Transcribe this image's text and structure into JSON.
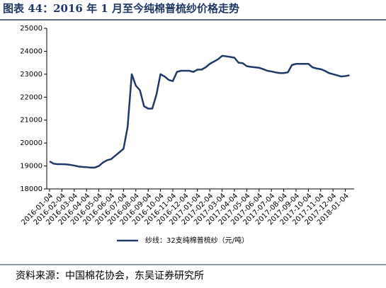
{
  "chart_data": {
    "type": "line",
    "title": "图表 44：2016 年 1 月至今纯棉普梳纱价格走势",
    "categories": [
      "2016-01-04",
      null,
      null,
      "2016-02-04",
      null,
      null,
      "2016-03-04",
      null,
      null,
      "2016-04-04",
      null,
      null,
      "2016-05-04",
      null,
      null,
      "2016-06-04",
      null,
      null,
      "2016-07-04",
      null,
      null,
      "2016-08-04",
      null,
      null,
      "2016-09-04",
      null,
      null,
      "2016-10-04",
      null,
      null,
      "2016-11-04",
      null,
      null,
      "2016-12-04",
      null,
      null,
      "2017-01-04",
      null,
      null,
      "2017-02-04",
      null,
      null,
      "2017-03-04",
      null,
      null,
      "2017-04-04",
      null,
      null,
      "2017-05-04",
      null,
      null,
      "2017-06-04",
      null,
      null,
      "2017-07-04",
      null,
      null,
      "2017-08-04",
      null,
      null,
      "2017-09-04",
      null,
      null,
      "2017-10-04",
      null,
      null,
      "2017-11-04",
      null,
      null,
      "2017-12-04",
      null,
      null,
      "2018-01-04",
      null
    ],
    "series": [
      {
        "name": "纱线：32支纯棉普梳纱（元/吨）",
        "color": "#1f3a68",
        "values": [
          19200,
          19100,
          19080,
          19080,
          19070,
          19050,
          19020,
          18980,
          18960,
          18950,
          18930,
          18930,
          19000,
          19150,
          19250,
          19300,
          19450,
          19600,
          19750,
          20700,
          23000,
          22500,
          22300,
          21600,
          21500,
          21500,
          22100,
          23000,
          22900,
          22750,
          22700,
          23100,
          23150,
          23150,
          23150,
          23100,
          23200,
          23200,
          23300,
          23450,
          23550,
          23650,
          23800,
          23780,
          23750,
          23720,
          23500,
          23480,
          23350,
          23320,
          23300,
          23280,
          23220,
          23150,
          23120,
          23080,
          23050,
          23050,
          23080,
          23400,
          23450,
          23450,
          23450,
          23450,
          23300,
          23250,
          23220,
          23150,
          23050,
          23000,
          22950,
          22900,
          22920,
          22950
        ]
      }
    ],
    "ylim": [
      18000,
      25000
    ],
    "yticks": [
      18000,
      19000,
      20000,
      21000,
      22000,
      23000,
      24000,
      25000
    ],
    "legend": "bottom",
    "grid": false
  },
  "source": "资料来源：中国棉花协会，东吴证券研究所"
}
